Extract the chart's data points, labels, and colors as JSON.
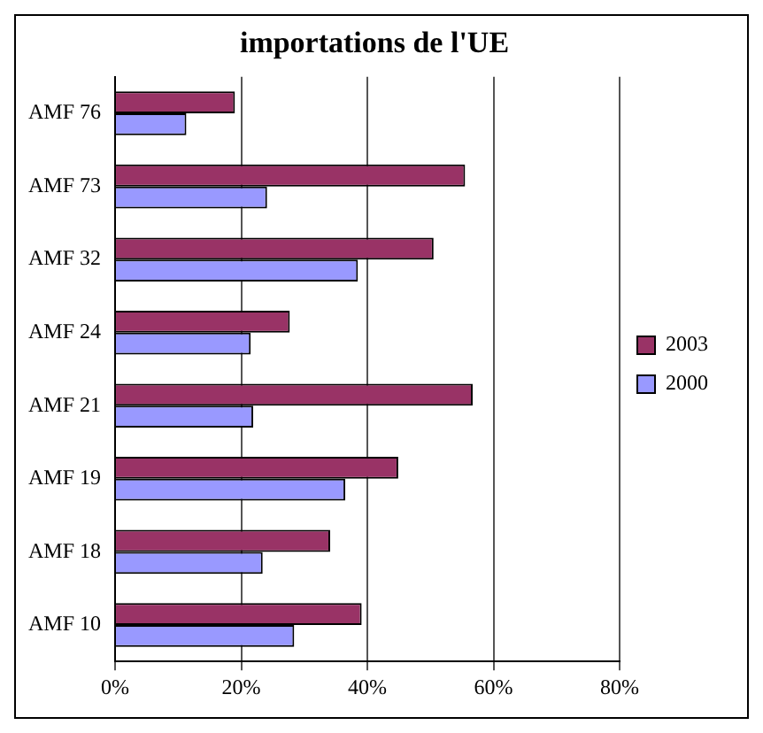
{
  "chart_data": {
    "type": "bar",
    "title": "importations de l'UE",
    "orientation": "horizontal",
    "categories": [
      "AMF 76",
      "AMF 73",
      "AMF 32",
      "AMF 24",
      "AMF 21",
      "AMF 19",
      "AMF 18",
      "AMF 10"
    ],
    "series": [
      {
        "name": "2003",
        "color": "#993366",
        "values": [
          19,
          55.5,
          50.5,
          27.7,
          56.7,
          44.9,
          34.1,
          39.1
        ]
      },
      {
        "name": "2000",
        "color": "#9999ff",
        "values": [
          11.3,
          24.1,
          38.5,
          21.5,
          21.9,
          36.5,
          23.4,
          28.4
        ]
      }
    ],
    "xlim": [
      0,
      80
    ],
    "xticks": [
      {
        "value": 0,
        "label": "0%"
      },
      {
        "value": 20,
        "label": "20%"
      },
      {
        "value": 40,
        "label": "40%"
      },
      {
        "value": 60,
        "label": "60%"
      },
      {
        "value": 80,
        "label": "80%"
      }
    ],
    "grid": "x",
    "legend": "right"
  }
}
